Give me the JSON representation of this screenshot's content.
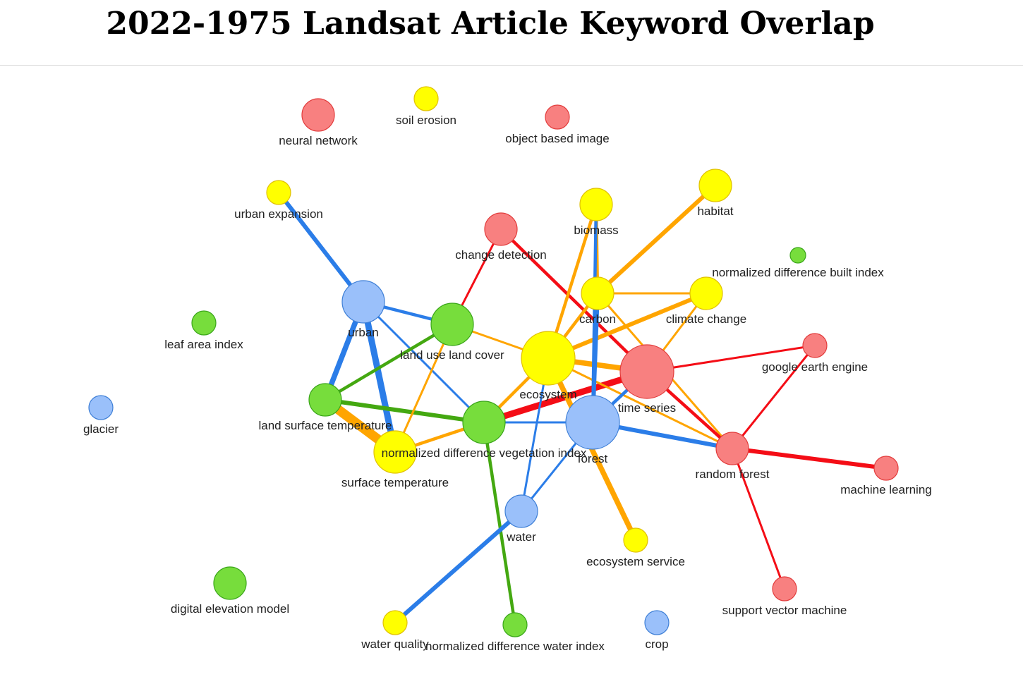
{
  "title": "2022-1975 Landsat Article Keyword Overlap",
  "colors": {
    "red_node": "#f88080",
    "red_edge": "#f40d16",
    "yellow_node": "#ffff00",
    "yellow_edge": "#ffa500",
    "green_node": "#77dd3c",
    "green_edge": "#44a811",
    "blue_node": "#9ac0fa",
    "blue_edge": "#2b7de8"
  },
  "nodes": [
    {
      "id": "neural network",
      "label": "neural network",
      "group": "red",
      "size": 3
    },
    {
      "id": "soil erosion",
      "label": "soil erosion",
      "group": "yellow",
      "size": 2
    },
    {
      "id": "object based image",
      "label": "object based image",
      "group": "red",
      "size": 2
    },
    {
      "id": "urban expansion",
      "label": "urban expansion",
      "group": "yellow",
      "size": 2
    },
    {
      "id": "biomass",
      "label": "biomass",
      "group": "yellow",
      "size": 3
    },
    {
      "id": "habitat",
      "label": "habitat",
      "group": "yellow",
      "size": 3
    },
    {
      "id": "change detection",
      "label": "change detection",
      "group": "red",
      "size": 3
    },
    {
      "id": "normalized difference built index",
      "label": "normalized difference built index",
      "group": "green",
      "size": 1
    },
    {
      "id": "carbon",
      "label": "carbon",
      "group": "yellow",
      "size": 3
    },
    {
      "id": "climate change",
      "label": "climate change",
      "group": "yellow",
      "size": 3
    },
    {
      "id": "urban",
      "label": "urban",
      "group": "blue",
      "size": 4
    },
    {
      "id": "land use land cover",
      "label": "land use land cover",
      "group": "green",
      "size": 4
    },
    {
      "id": "leaf area index",
      "label": "leaf area index",
      "group": "green",
      "size": 2
    },
    {
      "id": "ecosystem",
      "label": "ecosystem",
      "group": "yellow",
      "size": 5
    },
    {
      "id": "time series",
      "label": "time series",
      "group": "red",
      "size": 5
    },
    {
      "id": "google earth engine",
      "label": "google earth engine",
      "group": "red",
      "size": 2
    },
    {
      "id": "glacier",
      "label": "glacier",
      "group": "blue",
      "size": 2
    },
    {
      "id": "land surface temperature",
      "label": "land surface temperature",
      "group": "green",
      "size": 3
    },
    {
      "id": "normalized difference vegetation index",
      "label": "normalized difference vegetation index",
      "group": "green",
      "size": 4
    },
    {
      "id": "forest",
      "label": "forest",
      "group": "blue",
      "size": 5
    },
    {
      "id": "random forest",
      "label": "random forest",
      "group": "red",
      "size": 3
    },
    {
      "id": "machine learning",
      "label": "machine learning",
      "group": "red",
      "size": 2
    },
    {
      "id": "surface temperature",
      "label": "surface temperature",
      "group": "yellow",
      "size": 4
    },
    {
      "id": "water",
      "label": "water",
      "group": "blue",
      "size": 3
    },
    {
      "id": "ecosystem service",
      "label": "ecosystem service",
      "group": "yellow",
      "size": 2
    },
    {
      "id": "digital elevation model",
      "label": "digital elevation model",
      "group": "green",
      "size": 3
    },
    {
      "id": "support vector machine",
      "label": "support vector machine",
      "group": "red",
      "size": 2
    },
    {
      "id": "water quality",
      "label": "water quality",
      "group": "yellow",
      "size": 2
    },
    {
      "id": "normalized difference water index",
      "label": "normalized difference water index",
      "group": "green",
      "size": 2
    },
    {
      "id": "crop",
      "label": "crop",
      "group": "blue",
      "size": 2
    }
  ],
  "edges": [
    {
      "source": "urban expansion",
      "target": "urban",
      "color": "blue",
      "weight": 3
    },
    {
      "source": "urban",
      "target": "land surface temperature",
      "color": "blue",
      "weight": 4
    },
    {
      "source": "urban",
      "target": "surface temperature",
      "color": "blue",
      "weight": 5
    },
    {
      "source": "urban",
      "target": "land use land cover",
      "color": "blue",
      "weight": 2
    },
    {
      "source": "urban",
      "target": "normalized difference vegetation index",
      "color": "blue",
      "weight": 1
    },
    {
      "source": "land surface temperature",
      "target": "surface temperature",
      "color": "yellow",
      "weight": 8
    },
    {
      "source": "land surface temperature",
      "target": "land use land cover",
      "color": "green",
      "weight": 2
    },
    {
      "source": "land surface temperature",
      "target": "normalized difference vegetation index",
      "color": "green",
      "weight": 3
    },
    {
      "source": "surface temperature",
      "target": "land use land cover",
      "color": "yellow",
      "weight": 1
    },
    {
      "source": "surface temperature",
      "target": "normalized difference vegetation index",
      "color": "yellow",
      "weight": 2
    },
    {
      "source": "land use land cover",
      "target": "change detection",
      "color": "red",
      "weight": 1
    },
    {
      "source": "land use land cover",
      "target": "ecosystem",
      "color": "yellow",
      "weight": 1
    },
    {
      "source": "change detection",
      "target": "time series",
      "color": "red",
      "weight": 2
    },
    {
      "source": "normalized difference vegetation index",
      "target": "time series",
      "color": "red",
      "weight": 5
    },
    {
      "source": "normalized difference vegetation index",
      "target": "forest",
      "color": "blue",
      "weight": 1
    },
    {
      "source": "normalized difference vegetation index",
      "target": "ecosystem",
      "color": "yellow",
      "weight": 2
    },
    {
      "source": "normalized difference vegetation index",
      "target": "normalized difference water index",
      "color": "green",
      "weight": 2
    },
    {
      "source": "ecosystem",
      "target": "biomass",
      "color": "yellow",
      "weight": 2
    },
    {
      "source": "ecosystem",
      "target": "carbon",
      "color": "yellow",
      "weight": 2
    },
    {
      "source": "ecosystem",
      "target": "climate change",
      "color": "yellow",
      "weight": 3
    },
    {
      "source": "ecosystem",
      "target": "time series",
      "color": "yellow",
      "weight": 4
    },
    {
      "source": "ecosystem",
      "target": "ecosystem service",
      "color": "yellow",
      "weight": 4
    },
    {
      "source": "ecosystem",
      "target": "random forest",
      "color": "yellow",
      "weight": 1
    },
    {
      "source": "ecosystem",
      "target": "water",
      "color": "blue",
      "weight": 1
    },
    {
      "source": "biomass",
      "target": "carbon",
      "color": "yellow",
      "weight": 2
    },
    {
      "source": "biomass",
      "target": "forest",
      "color": "blue",
      "weight": 2
    },
    {
      "source": "habitat",
      "target": "carbon",
      "color": "yellow",
      "weight": 3
    },
    {
      "source": "carbon",
      "target": "climate change",
      "color": "yellow",
      "weight": 1
    },
    {
      "source": "carbon",
      "target": "forest",
      "color": "blue",
      "weight": 3
    },
    {
      "source": "carbon",
      "target": "random forest",
      "color": "yellow",
      "weight": 1
    },
    {
      "source": "climate change",
      "target": "time series",
      "color": "yellow",
      "weight": 1
    },
    {
      "source": "time series",
      "target": "google earth engine",
      "color": "red",
      "weight": 1
    },
    {
      "source": "time series",
      "target": "random forest",
      "color": "red",
      "weight": 2
    },
    {
      "source": "time series",
      "target": "forest",
      "color": "blue",
      "weight": 2
    },
    {
      "source": "google earth engine",
      "target": "random forest",
      "color": "red",
      "weight": 1
    },
    {
      "source": "forest",
      "target": "random forest",
      "color": "blue",
      "weight": 3
    },
    {
      "source": "forest",
      "target": "water",
      "color": "blue",
      "weight": 1
    },
    {
      "source": "random forest",
      "target": "machine learning",
      "color": "red",
      "weight": 3
    },
    {
      "source": "random forest",
      "target": "support vector machine",
      "color": "red",
      "weight": 1
    },
    {
      "source": "water",
      "target": "water quality",
      "color": "blue",
      "weight": 3
    }
  ]
}
